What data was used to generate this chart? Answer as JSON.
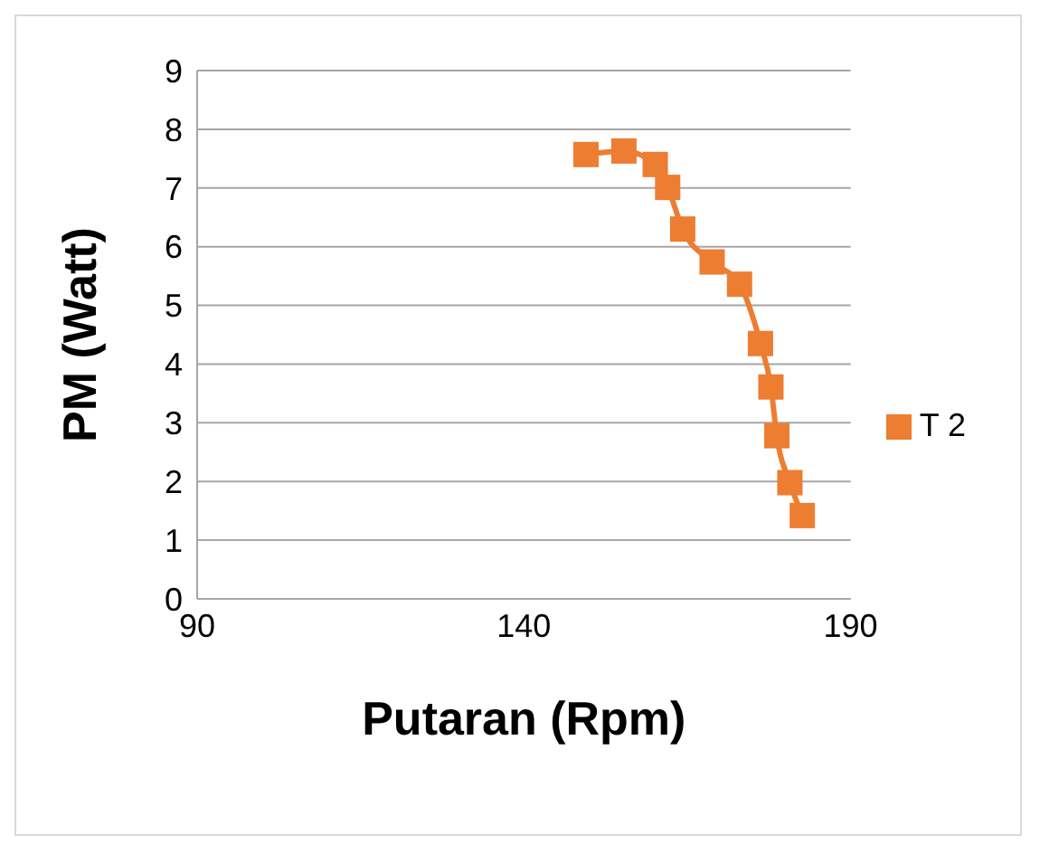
{
  "chart_data": {
    "type": "line",
    "xlabel": "Putaran (Rpm)",
    "ylabel": "PM (Watt)",
    "x": [
      149.5,
      155.3,
      160.1,
      162,
      164.3,
      168.8,
      173,
      176.2,
      177.8,
      178.7,
      180.7,
      182.6
    ],
    "series": [
      {
        "name": "T 2",
        "color": "#ed7d31",
        "values": [
          7.57,
          7.63,
          7.4,
          7.01,
          6.3,
          5.74,
          5.36,
          4.35,
          3.61,
          2.78,
          1.98,
          1.42
        ]
      }
    ],
    "xlim": [
      90,
      190
    ],
    "xticks": [
      90,
      140,
      190
    ],
    "ylim": [
      0,
      9
    ],
    "yticks": [
      0,
      1,
      2,
      3,
      4,
      5,
      6,
      7,
      8,
      9
    ],
    "grid": "y",
    "legend": "right",
    "marker": "square",
    "line_style": "solid"
  }
}
